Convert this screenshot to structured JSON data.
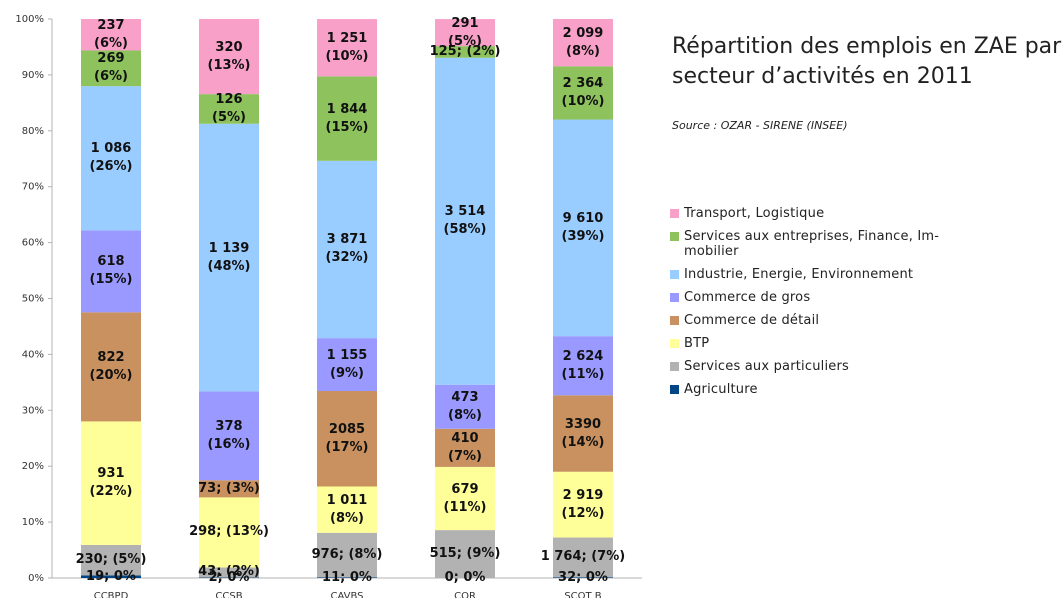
{
  "chart_data": {
    "type": "stacked_bar_100",
    "title": "Répartition des emplois en ZAE par secteur d’activités en 2011",
    "subtitle": "Source : OZAR - SIRENE (INSEE)",
    "categories": [
      "CCBPD",
      "CCSB",
      "CAVBS",
      "COR",
      "SCOT B"
    ],
    "ylim": [
      0,
      100
    ],
    "yticks": [
      {
        "value": 0,
        "label": "0%"
      },
      {
        "value": 10,
        "label": "10%"
      },
      {
        "value": 20,
        "label": "20%"
      },
      {
        "value": 30,
        "label": "30%"
      },
      {
        "value": 40,
        "label": "40%"
      },
      {
        "value": 50,
        "label": "50%"
      },
      {
        "value": 60,
        "label": "60%"
      },
      {
        "value": 70,
        "label": "70%"
      },
      {
        "value": 80,
        "label": "80%"
      },
      {
        "value": 90,
        "label": "90%"
      },
      {
        "value": 100,
        "label": "100%"
      }
    ],
    "grid": false,
    "legend": "right",
    "series": [
      {
        "name": "Agriculture",
        "color": "#004586",
        "values": [
          0.45,
          0.08,
          0.09,
          0,
          0.13
        ],
        "value_labels": [
          "19; 0%",
          "2; 0%",
          "11; 0%",
          "0; 0%",
          "32; 0%"
        ]
      },
      {
        "name": "Services aux particuliers",
        "color": "#b2b2b2",
        "values": [
          5.46,
          1.81,
          8.0,
          8.57,
          7.11
        ],
        "value_labels": [
          "230; (5%)",
          "43; (2%)",
          "976; (8%)",
          "515; (9%)",
          "1 764; (7%)"
        ]
      },
      {
        "name": "BTP",
        "color": "#ffff99",
        "values": [
          22.1,
          12.53,
          8.28,
          11.3,
          11.77
        ],
        "value_labels": [
          "931\n(22%)",
          "298; (13%)",
          "1 011\n(8%)",
          "679\n(11%)",
          "2 919\n(12%)"
        ]
      },
      {
        "name": "Commerce de détail",
        "color": "#c8915f",
        "values": [
          19.52,
          3.07,
          17.08,
          6.83,
          13.67
        ],
        "value_labels": [
          "822\n(20%)",
          "73; (3%)",
          "2085\n(17%)",
          "410\n(7%)",
          "3390\n(14%)"
        ]
      },
      {
        "name": "Commerce de gros",
        "color": "#9999ff",
        "values": [
          14.67,
          15.89,
          9.46,
          7.87,
          10.58
        ],
        "value_labels": [
          "618\n(15%)",
          "378\n(16%)",
          "1 155\n(9%)",
          "473\n(8%)",
          "2 624\n(11%)"
        ]
      },
      {
        "name": "Industrie, Energie, Environnement",
        "color": "#99ccff",
        "values": [
          25.78,
          47.88,
          31.72,
          58.498,
          38.75
        ],
        "value_labels": [
          "1 086\n(26%)",
          "1 139\n(48%)",
          "3 871\n(32%)",
          "3 514\n(58%)",
          "9 610\n(39%)"
        ]
      },
      {
        "name": "Services aux entreprises, Finance, Im-\nmobilier",
        "color": "#8dc25d",
        "values": [
          6.39,
          5.3,
          15.11,
          2.08,
          9.53
        ],
        "value_labels": [
          "269\n(6%)",
          "126\n(5%)",
          "1 844\n(15%)",
          "125; (2%)",
          "2 364\n(10%)"
        ]
      },
      {
        "name": "Transport, Logistique",
        "color": "#f9a0c8",
        "values": [
          5.63,
          13.45,
          10.25,
          4.84,
          8.46
        ],
        "value_labels": [
          "237\n(6%)",
          "320\n(13%)",
          "1 251\n(10%)",
          "291\n(5%)",
          "2 099\n(8%)"
        ]
      }
    ]
  }
}
